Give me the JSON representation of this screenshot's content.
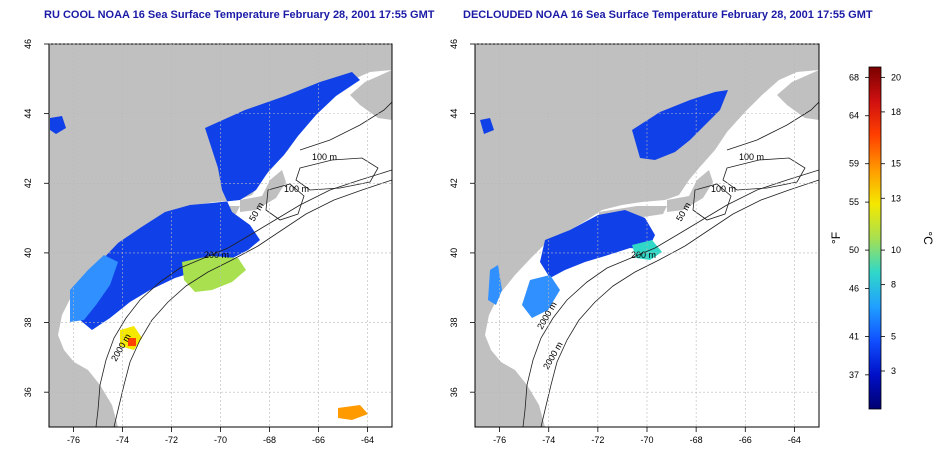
{
  "panels": [
    {
      "id": "left",
      "title": "RU COOL NOAA 16 Sea Surface Temperature February 28, 2001 17:55 GMT",
      "contour_labels": [
        "100 m",
        "100 m",
        "50 m",
        "200 m",
        "2000 m"
      ]
    },
    {
      "id": "right",
      "title": "DECLOUDED NOAA 16 Sea Surface Temperature February 28, 2001 17:55 GMT",
      "contour_labels": [
        "100 m",
        "100 m",
        "50 m",
        "200 m",
        "2000 m",
        "2000 m"
      ]
    }
  ],
  "axes": {
    "lon_ticks": [
      "-76",
      "-74",
      "-72",
      "-70",
      "-68",
      "-66",
      "-64"
    ],
    "lat_ticks": [
      "36",
      "38",
      "40",
      "42",
      "44",
      "46"
    ]
  },
  "colorbar": {
    "fahrenheit_unit": "°F",
    "celsius_unit": "°C",
    "fahrenheit_ticks": [
      "68",
      "64",
      "59",
      "55",
      "50",
      "46",
      "41",
      "37"
    ],
    "celsius_ticks": [
      "20",
      "18",
      "15",
      "13",
      "10",
      "8",
      "5",
      "3"
    ],
    "colors": [
      "#7a0000",
      "#d01010",
      "#ff4000",
      "#ff9a00",
      "#f5e800",
      "#a8e050",
      "#30d8c8",
      "#20a0ff",
      "#1050ff",
      "#0010c8",
      "#000070"
    ]
  },
  "colors": {
    "land": "#c0c0c0",
    "water_cold": "#1040e8",
    "water_mid": "#3090ff",
    "water_warm": "#40d8c0",
    "title_text": "#1a1aa6"
  }
}
